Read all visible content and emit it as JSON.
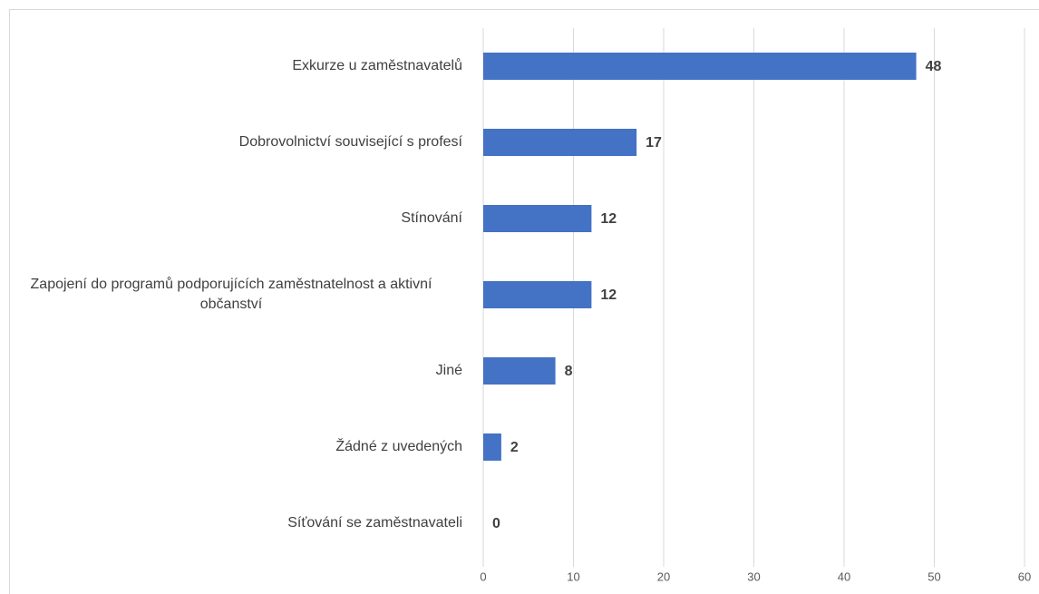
{
  "chart_data": {
    "type": "bar",
    "orientation": "horizontal",
    "categories": [
      "Exkurze u zaměstnavatelů",
      "Dobrovolnictví související s profesí",
      "Stínování",
      "Zapojení do programů podporujících zaměstnatelnost a aktivní občanství",
      "Jiné",
      "Žádné z uvedených",
      "Síťování se zaměstnavateli"
    ],
    "values": [
      48,
      17,
      12,
      12,
      8,
      2,
      0
    ],
    "color": "#4472c4",
    "xlim": [
      0,
      60
    ],
    "xticks": [
      0,
      10,
      20,
      30,
      40,
      50,
      60
    ],
    "grid": true
  }
}
